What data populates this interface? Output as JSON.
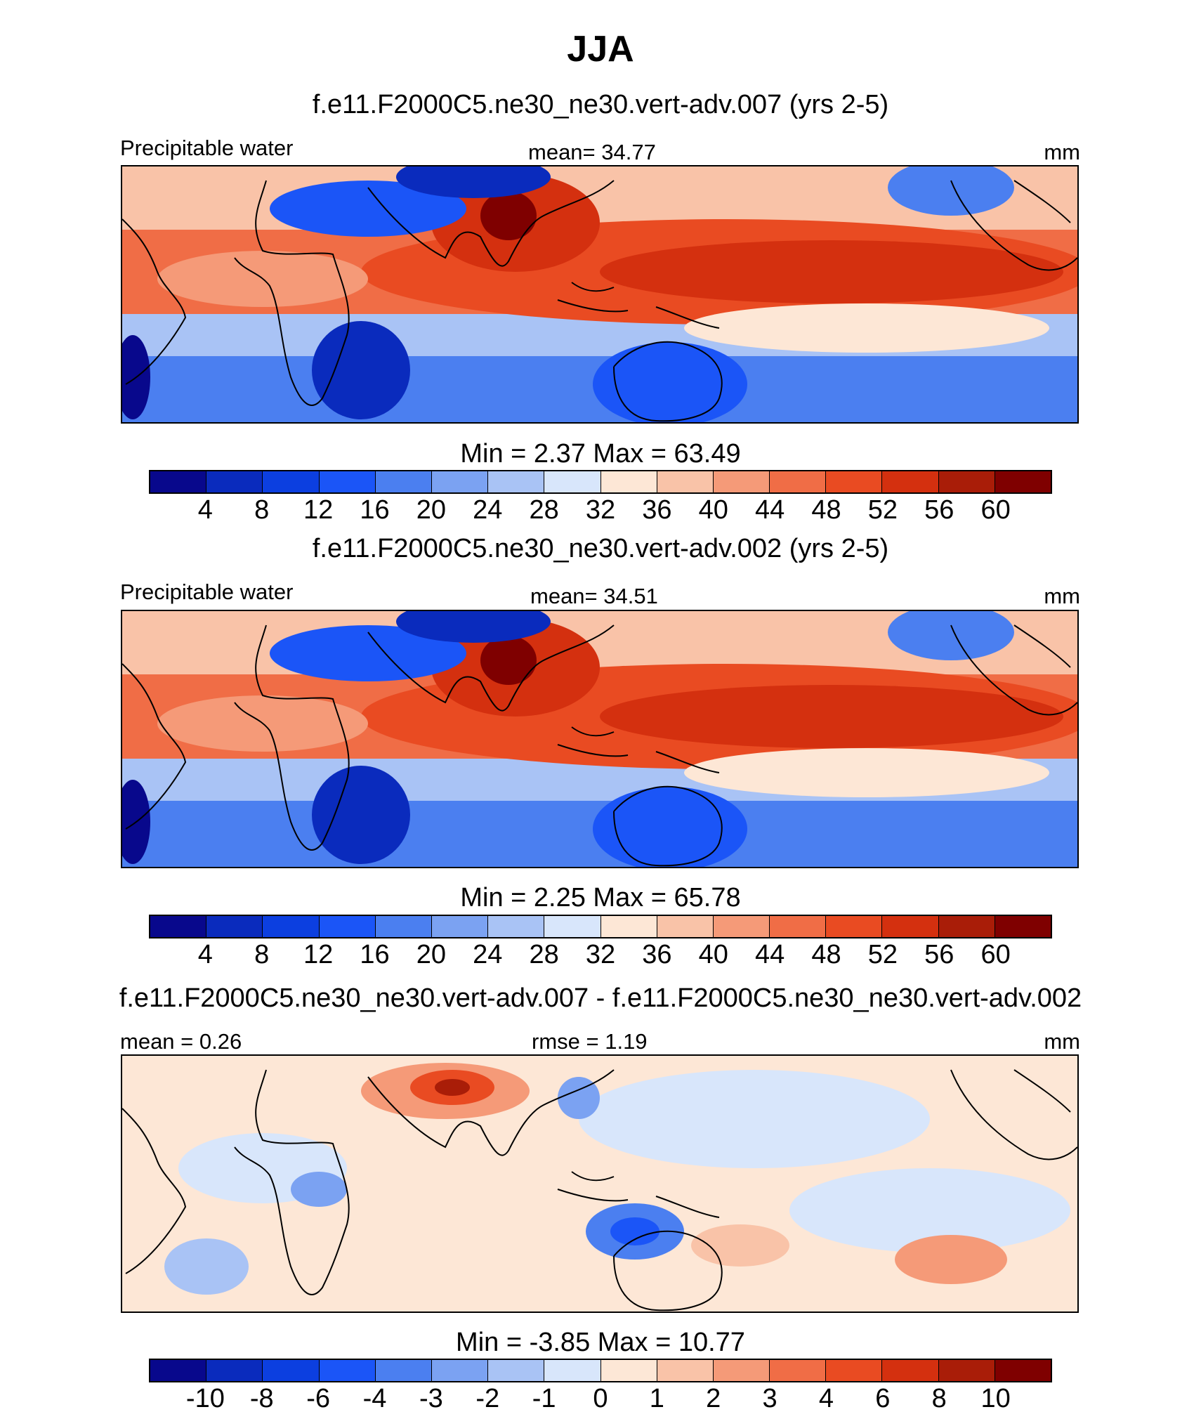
{
  "figure": {
    "title": "JJA"
  },
  "colors": {
    "sequential": [
      "#08088c",
      "#0a2bbd",
      "#0c3fe0",
      "#1b55f7",
      "#4b7ff0",
      "#7ba2f2",
      "#a9c3f5",
      "#d8e6fb",
      "#fde7d6",
      "#f9c3a8",
      "#f59a78",
      "#f06d46",
      "#e94b22",
      "#d4300f",
      "#a91d08",
      "#7f0000"
    ],
    "difference": [
      "#08088c",
      "#0a2bbd",
      "#0c3fe0",
      "#1b55f7",
      "#4b7ff0",
      "#7ba2f2",
      "#a9c3f5",
      "#d8e6fb",
      "#fde7d6",
      "#f9c3a8",
      "#f59a78",
      "#f06d46",
      "#e94b22",
      "#d4300f",
      "#a91d08",
      "#7f0000"
    ],
    "coastline": "#000000"
  },
  "panels": [
    {
      "title": "f.e11.F2000C5.ne30_ne30.vert-adv.007 (yrs 2-5)",
      "left_label": "Precipitable water",
      "center_label": "mean=  34.77",
      "units": "mm",
      "minmax": "Min =   2.37 Max =  63.49"
    },
    {
      "title": "f.e11.F2000C5.ne30_ne30.vert-adv.002 (yrs 2-5)",
      "left_label": "Precipitable water",
      "center_label": "mean=  34.51",
      "units": "mm",
      "minmax": "Min =   2.25 Max =  65.78"
    },
    {
      "title": "f.e11.F2000C5.ne30_ne30.vert-adv.007 - f.e11.F2000C5.ne30_ne30.vert-adv.002",
      "left_label": "mean =   0.26",
      "center_label": "rmse =   1.19",
      "units": "mm",
      "minmax": "Min =  -3.85 Max =  10.77"
    }
  ],
  "chart_data": [
    {
      "type": "heatmap",
      "title": "f.e11.F2000C5.ne30_ne30.vert-adv.007 (yrs 2-5)",
      "variable": "Precipitable water",
      "units": "mm",
      "mean": 34.77,
      "min": 2.37,
      "max": 63.49,
      "colorbar_levels": [
        "4",
        "8",
        "12",
        "16",
        "20",
        "24",
        "28",
        "32",
        "36",
        "40",
        "44",
        "48",
        "52",
        "56",
        "60"
      ]
    },
    {
      "type": "heatmap",
      "title": "f.e11.F2000C5.ne30_ne30.vert-adv.002 (yrs 2-5)",
      "variable": "Precipitable water",
      "units": "mm",
      "mean": 34.51,
      "min": 2.25,
      "max": 65.78,
      "colorbar_levels": [
        "4",
        "8",
        "12",
        "16",
        "20",
        "24",
        "28",
        "32",
        "36",
        "40",
        "44",
        "48",
        "52",
        "56",
        "60"
      ]
    },
    {
      "type": "heatmap",
      "title": "f.e11.F2000C5.ne30_ne30.vert-adv.007 - f.e11.F2000C5.ne30_ne30.vert-adv.002",
      "units": "mm",
      "mean": 0.26,
      "rmse": 1.19,
      "min": -3.85,
      "max": 10.77,
      "colorbar_levels": [
        "-10",
        "-8",
        "-6",
        "-4",
        "-3",
        "-2",
        "-1",
        "0",
        "1",
        "2",
        "3",
        "4",
        "6",
        "8",
        "10"
      ]
    }
  ]
}
